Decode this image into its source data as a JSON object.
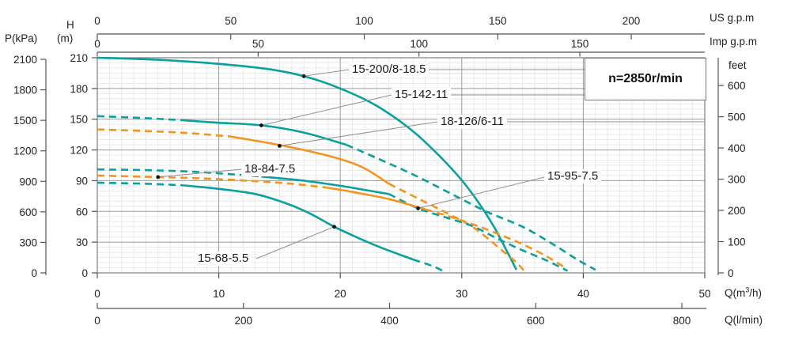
{
  "annotation": {
    "speed": "n=2850r/min"
  },
  "colors": {
    "teal": "#0aa09c",
    "orange": "#f3941e",
    "grid_major": "#9b9b9b",
    "grid_minor": "#e4e4e4",
    "frame": "#7d7d7d",
    "axis": "#555555",
    "leader": "#8f8f8f",
    "text": "#222222"
  },
  "axes": {
    "pressure": {
      "label": "P(kPa)",
      "ticks": [
        2100,
        1800,
        1500,
        1200,
        900,
        600,
        300,
        0
      ]
    },
    "head": {
      "label_top": "H",
      "label_unit": "(m)",
      "ticks": [
        210,
        180,
        150,
        120,
        90,
        60,
        30,
        0
      ]
    },
    "us_gpm": {
      "label": "US g.p.m",
      "ticks": [
        0,
        50,
        100,
        150,
        200
      ]
    },
    "imp_gpm": {
      "label": "Imp g.p.m",
      "ticks": [
        0,
        50,
        100,
        150
      ]
    },
    "feet": {
      "label": "feet",
      "ticks": [
        600,
        500,
        400,
        300,
        200,
        100,
        0
      ]
    },
    "q_m3h": {
      "label_pre": "Q(m",
      "label_sup": "3",
      "label_post": "/h)",
      "ticks": [
        0,
        10,
        20,
        30,
        40,
        50
      ]
    },
    "q_lmin": {
      "label": "Q(l/min)",
      "ticks": [
        0,
        200,
        400,
        600,
        800
      ]
    }
  },
  "chart_data": {
    "type": "line",
    "title": "Pump performance curves",
    "xlabel": "Q(m3/h)",
    "x2label": "Q(l/min)",
    "x3label": "US g.p.m",
    "x4label": "Imp g.p.m",
    "ylabel": "H(m)",
    "y2label": "P(kPa)",
    "y3label": "feet",
    "xlim": [
      0,
      50
    ],
    "ylim": [
      0,
      210
    ],
    "grid": true,
    "annotation": "n=2850r/min",
    "legend_position": "inline-callouts",
    "series": [
      {
        "name": "15-200/8-18.5",
        "color": "teal",
        "segments": [
          {
            "style": "solid",
            "points": [
              [
                0,
                210
              ],
              [
                5,
                208
              ],
              [
                10,
                204
              ],
              [
                14,
                199
              ],
              [
                17,
                192
              ],
              [
                20,
                180
              ],
              [
                23,
                163
              ],
              [
                26,
                138
              ],
              [
                28.5,
                110
              ],
              [
                30.5,
                83
              ],
              [
                32.5,
                48
              ],
              [
                34.5,
                3
              ]
            ]
          }
        ]
      },
      {
        "name": "15-142-11",
        "color": "teal",
        "segments": [
          {
            "style": "dashed",
            "points": [
              [
                0,
                153
              ],
              [
                4,
                151
              ],
              [
                7,
                149
              ]
            ]
          },
          {
            "style": "solid",
            "points": [
              [
                7,
                149
              ],
              [
                10,
                146.5
              ],
              [
                13.5,
                144
              ],
              [
                17,
                137
              ],
              [
                20.5,
                125
              ]
            ]
          },
          {
            "style": "dashed",
            "points": [
              [
                20.5,
                125
              ],
              [
                23,
                112
              ],
              [
                26,
                96
              ],
              [
                29,
                78
              ],
              [
                32,
                60
              ],
              [
                35,
                45
              ],
              [
                37.5,
                28
              ],
              [
                39.5,
                13
              ],
              [
                41,
                3
              ]
            ]
          }
        ]
      },
      {
        "name": "18-126/6-11",
        "color": "orange",
        "segments": [
          {
            "style": "dashed",
            "points": [
              [
                0,
                140
              ],
              [
                5,
                138
              ],
              [
                8,
                136
              ],
              [
                11,
                133
              ]
            ]
          },
          {
            "style": "solid",
            "points": [
              [
                11,
                133
              ],
              [
                14,
                127
              ],
              [
                17,
                120
              ],
              [
                20,
                111
              ],
              [
                22,
                102
              ],
              [
                24,
                87
              ]
            ]
          },
          {
            "style": "dashed",
            "points": [
              [
                24,
                87
              ],
              [
                26.5,
                72
              ],
              [
                29,
                57
              ],
              [
                31,
                44
              ],
              [
                33,
                25
              ],
              [
                34.5,
                10
              ],
              [
                35.2,
                1
              ]
            ]
          }
        ]
      },
      {
        "name": "15-95-7.5",
        "color": "teal",
        "segments": [
          {
            "style": "dashed",
            "points": [
              [
                0,
                101
              ],
              [
                5,
                100
              ],
              [
                9,
                98
              ],
              [
                13.5,
                94
              ]
            ]
          },
          {
            "style": "solid",
            "points": [
              [
                13.5,
                94
              ],
              [
                17,
                90
              ],
              [
                20,
                85
              ],
              [
                22,
                81
              ],
              [
                24,
                77
              ]
            ]
          },
          {
            "style": "dashed",
            "points": [
              [
                24,
                77
              ],
              [
                26.4,
                63
              ],
              [
                29,
                53
              ],
              [
                31,
                45
              ],
              [
                33,
                33
              ],
              [
                35,
                22
              ],
              [
                37,
                12
              ],
              [
                38.7,
                2
              ]
            ]
          }
        ]
      },
      {
        "name": "18-84-7.5",
        "color": "orange",
        "segments": [
          {
            "style": "dashed",
            "points": [
              [
                0,
                95
              ],
              [
                5,
                93.5
              ],
              [
                9,
                92
              ],
              [
                13,
                89.5
              ],
              [
                16,
                87
              ],
              [
                19,
                83
              ]
            ]
          },
          {
            "style": "solid",
            "points": [
              [
                19,
                83
              ],
              [
                21,
                79
              ],
              [
                24,
                72
              ],
              [
                27,
                62
              ]
            ]
          },
          {
            "style": "dashed",
            "points": [
              [
                27,
                62
              ],
              [
                29,
                55
              ],
              [
                31,
                47
              ],
              [
                33,
                38
              ],
              [
                35,
                28
              ],
              [
                37,
                16
              ],
              [
                38.5,
                5
              ]
            ]
          }
        ]
      },
      {
        "name": "15-68-5.5",
        "color": "teal",
        "segments": [
          {
            "style": "dashed",
            "points": [
              [
                0,
                88
              ],
              [
                4,
                87
              ],
              [
                7,
                85.5
              ]
            ]
          },
          {
            "style": "solid",
            "points": [
              [
                7,
                85.5
              ],
              [
                10,
                82
              ],
              [
                13,
                77
              ],
              [
                15.5,
                68
              ],
              [
                17.5,
                58
              ],
              [
                19.5,
                45
              ],
              [
                21.5,
                34
              ],
              [
                23.5,
                24
              ],
              [
                26,
                13
              ]
            ]
          },
          {
            "style": "dashed",
            "points": [
              [
                26,
                13
              ],
              [
                27.5,
                7
              ],
              [
                28.6,
                1
              ]
            ]
          }
        ]
      }
    ]
  },
  "callouts": [
    {
      "text": "15-200/8-18.5",
      "dot": [
        17,
        192
      ],
      "diag_to": [
        441,
        88
      ],
      "horiz_to": 739
    },
    {
      "text": "15-142-11",
      "dot": [
        13.5,
        144
      ],
      "diag_to": [
        495,
        120
      ],
      "horiz_to": 891
    },
    {
      "text": "18-126/6-11",
      "dot": [
        15,
        124
      ],
      "diag_to": [
        553,
        154
      ],
      "horiz_to": 891
    },
    {
      "text": "18-84-7.5",
      "dot": [
        5,
        93.5
      ],
      "diag_to": [
        305,
        214
      ],
      "horiz_to": null
    },
    {
      "text": "15-95-7.5",
      "dot": [
        26.4,
        63
      ],
      "diag_to": [
        688,
        224
      ],
      "horiz_to": null
    },
    {
      "text": "15-68-5.5",
      "dot": [
        19.5,
        45
      ],
      "diag_to": [
        324,
        327
      ],
      "horiz_to": null
    }
  ]
}
